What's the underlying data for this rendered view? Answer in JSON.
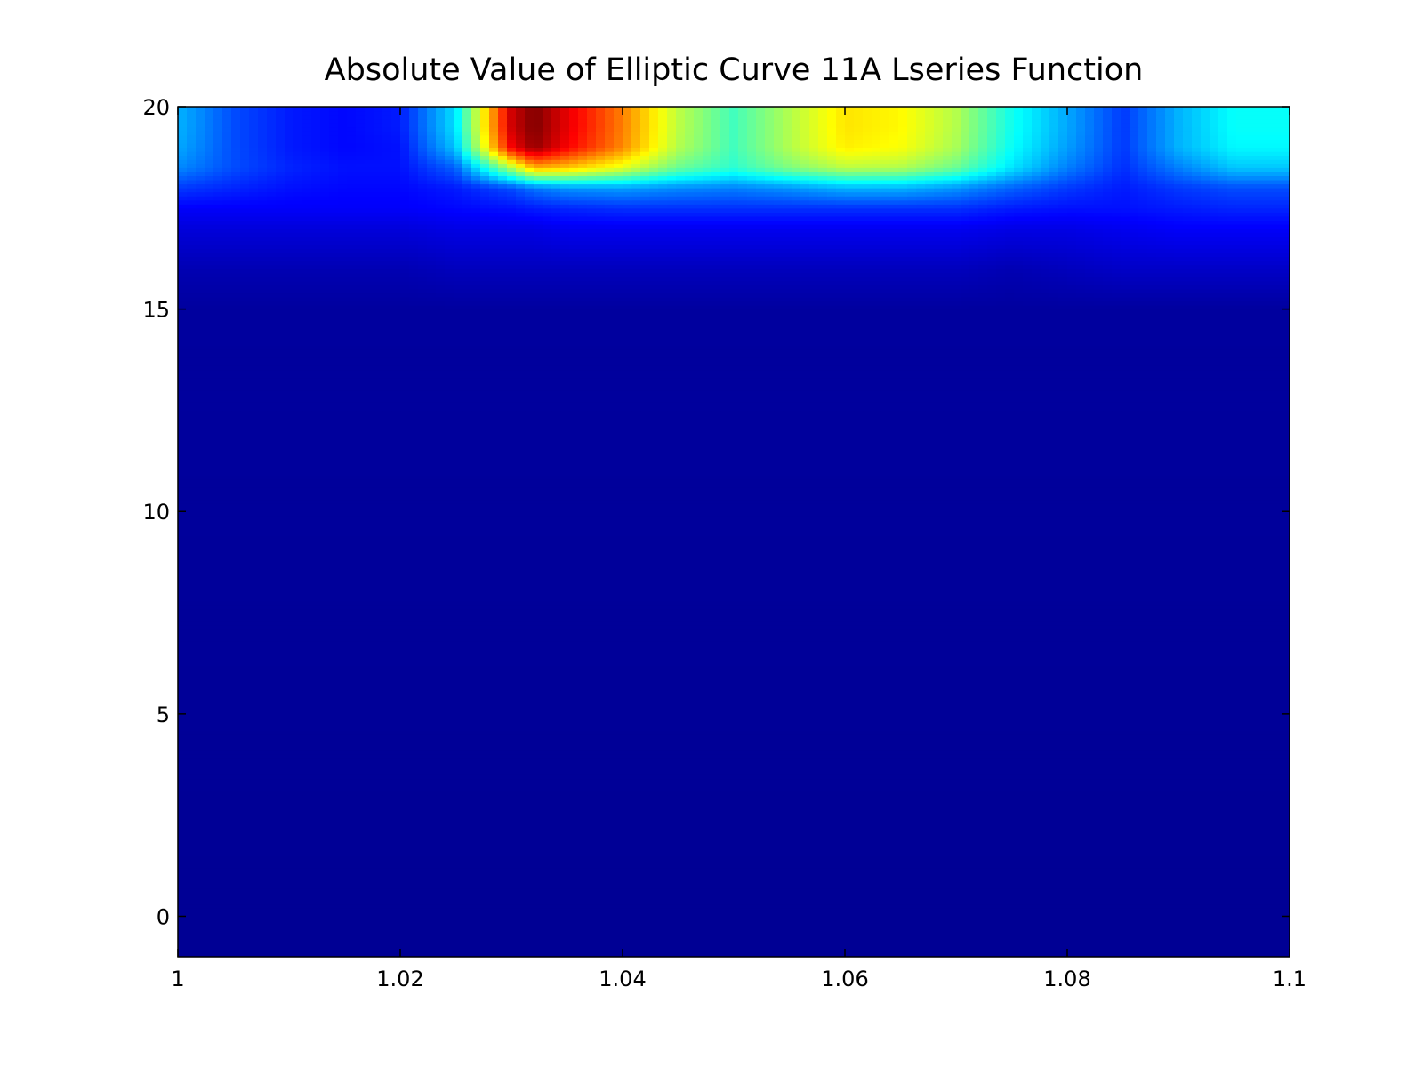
{
  "chart_data": {
    "type": "heatmap",
    "title": "Absolute Value of Elliptic Curve 11A Lseries Function",
    "xlabel": "",
    "ylabel": "",
    "xlim": [
      1.0,
      1.1
    ],
    "ylim": [
      -1,
      20
    ],
    "x_ticks": [
      1.0,
      1.02,
      1.04,
      1.06,
      1.08,
      1.1
    ],
    "x_tick_labels": [
      "1",
      "1.02",
      "1.04",
      "1.06",
      "1.08",
      "1.1"
    ],
    "y_ticks": [
      0,
      5,
      10,
      15,
      20
    ],
    "y_tick_labels": [
      "0",
      "5",
      "10",
      "15",
      "20"
    ],
    "colormap": "jet",
    "grid": false,
    "legend": false,
    "row_y": [
      -1,
      15,
      16,
      17,
      17.5,
      18,
      18.5,
      19,
      19.5,
      20
    ],
    "column_x": [
      1.0,
      1.005,
      1.01,
      1.015,
      1.02,
      1.025,
      1.03,
      1.032,
      1.035,
      1.04,
      1.045,
      1.05,
      1.055,
      1.06,
      1.065,
      1.07,
      1.075,
      1.08,
      1.085,
      1.09,
      1.095,
      1.1
    ],
    "normalized_values": [
      [
        0.02,
        0.02,
        0.02,
        0.02,
        0.02,
        0.02,
        0.02,
        0.02,
        0.02,
        0.02,
        0.02,
        0.02,
        0.02,
        0.02,
        0.02,
        0.02,
        0.02,
        0.02,
        0.02,
        0.02,
        0.02,
        0.02
      ],
      [
        0.03,
        0.03,
        0.03,
        0.03,
        0.03,
        0.03,
        0.03,
        0.03,
        0.03,
        0.03,
        0.03,
        0.03,
        0.03,
        0.03,
        0.03,
        0.03,
        0.03,
        0.03,
        0.03,
        0.03,
        0.03,
        0.03
      ],
      [
        0.05,
        0.05,
        0.05,
        0.05,
        0.05,
        0.06,
        0.06,
        0.06,
        0.06,
        0.06,
        0.06,
        0.06,
        0.06,
        0.06,
        0.06,
        0.06,
        0.05,
        0.06,
        0.07,
        0.07,
        0.07,
        0.07
      ],
      [
        0.09,
        0.09,
        0.09,
        0.09,
        0.09,
        0.1,
        0.1,
        0.1,
        0.11,
        0.11,
        0.11,
        0.11,
        0.11,
        0.11,
        0.11,
        0.11,
        0.1,
        0.1,
        0.11,
        0.12,
        0.12,
        0.12
      ],
      [
        0.12,
        0.12,
        0.12,
        0.12,
        0.12,
        0.13,
        0.14,
        0.15,
        0.16,
        0.17,
        0.17,
        0.17,
        0.17,
        0.17,
        0.17,
        0.17,
        0.15,
        0.14,
        0.14,
        0.15,
        0.16,
        0.16
      ],
      [
        0.18,
        0.16,
        0.14,
        0.13,
        0.13,
        0.15,
        0.2,
        0.24,
        0.27,
        0.28,
        0.26,
        0.25,
        0.27,
        0.3,
        0.3,
        0.27,
        0.22,
        0.18,
        0.15,
        0.18,
        0.2,
        0.2
      ],
      [
        0.26,
        0.2,
        0.16,
        0.14,
        0.14,
        0.22,
        0.55,
        0.7,
        0.68,
        0.6,
        0.48,
        0.42,
        0.5,
        0.56,
        0.55,
        0.48,
        0.35,
        0.25,
        0.17,
        0.25,
        0.32,
        0.32
      ],
      [
        0.29,
        0.2,
        0.15,
        0.13,
        0.14,
        0.32,
        0.88,
        0.98,
        0.88,
        0.74,
        0.55,
        0.44,
        0.55,
        0.64,
        0.62,
        0.54,
        0.38,
        0.28,
        0.18,
        0.3,
        0.37,
        0.37
      ],
      [
        0.3,
        0.2,
        0.15,
        0.13,
        0.15,
        0.35,
        0.92,
        1.0,
        0.9,
        0.75,
        0.56,
        0.44,
        0.55,
        0.65,
        0.63,
        0.55,
        0.39,
        0.29,
        0.18,
        0.3,
        0.38,
        0.38
      ],
      [
        0.3,
        0.2,
        0.15,
        0.13,
        0.15,
        0.35,
        0.92,
        1.0,
        0.9,
        0.75,
        0.56,
        0.44,
        0.55,
        0.65,
        0.63,
        0.55,
        0.39,
        0.29,
        0.18,
        0.3,
        0.38,
        0.38
      ]
    ]
  }
}
